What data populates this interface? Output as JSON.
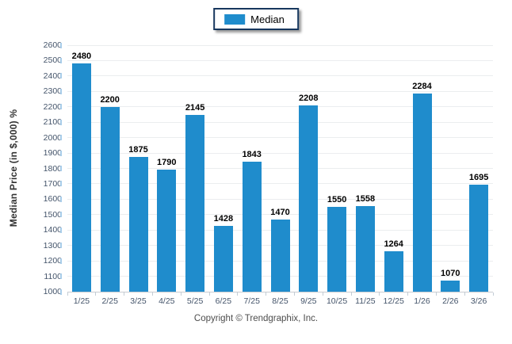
{
  "legend": {
    "label": "Median",
    "swatch_color": "#1f8ccc"
  },
  "footer": {
    "copyright": "Copyright © Trendgraphix, Inc."
  },
  "colors": {
    "bar": "#1f8ccc",
    "legend_border": "#17375e",
    "gridline": "#ebedef",
    "axis_baseline": "#c9ccd1",
    "tick_label": "#44546a",
    "data_label": "#000000"
  },
  "chart_data": {
    "type": "bar",
    "title": "",
    "categories": [
      "1/25",
      "2/25",
      "3/25",
      "4/25",
      "5/25",
      "6/25",
      "7/25",
      "8/25",
      "9/25",
      "10/25",
      "11/25",
      "12/25",
      "1/26",
      "2/26",
      "3/26"
    ],
    "series": [
      {
        "name": "Median",
        "values": [
          2480,
          2200,
          1875,
          1790,
          2145,
          1428,
          1843,
          1470,
          2208,
          1550,
          1558,
          1264,
          2284,
          1070,
          1695
        ]
      }
    ],
    "data_labels_shown": true,
    "xlabel": "",
    "ylabel": "Median Price (in $,000) %",
    "ylim": [
      1000,
      2600
    ],
    "ytick_step": 100,
    "yticks": [
      1000,
      1100,
      1200,
      1300,
      1400,
      1500,
      1600,
      1700,
      1800,
      1900,
      2000,
      2100,
      2200,
      2300,
      2400,
      2500,
      2600
    ],
    "grid": true,
    "legend_position": "top-center",
    "bar_color": "#1f8ccc"
  }
}
